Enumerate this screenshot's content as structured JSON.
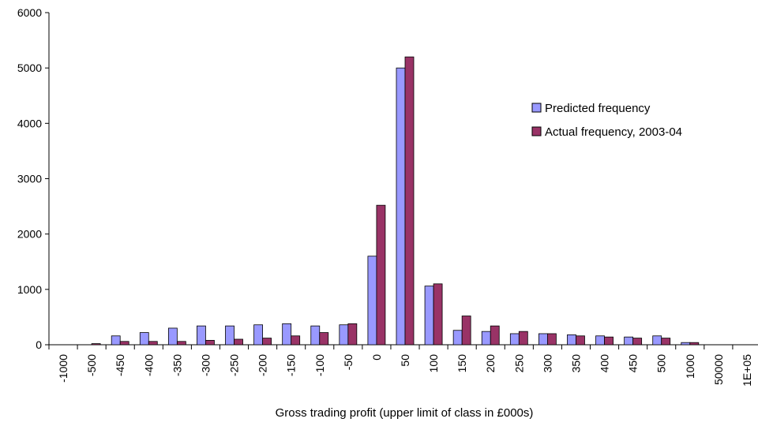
{
  "chart_data": {
    "type": "bar",
    "xlabel": "Gross trading profit (upper limit of class in £000s)",
    "ylabel": "",
    "ylim": [
      0,
      6000
    ],
    "yticks": [
      0,
      1000,
      2000,
      3000,
      4000,
      5000,
      6000
    ],
    "grid": false,
    "legend_position": "top-right",
    "categories": [
      "-1000",
      "-500",
      "-450",
      "-400",
      "-350",
      "-300",
      "-250",
      "-200",
      "-150",
      "-100",
      "-50",
      "0",
      "50",
      "100",
      "150",
      "200",
      "250",
      "300",
      "350",
      "400",
      "450",
      "500",
      "1000",
      "50000",
      "1E+05"
    ],
    "series": [
      {
        "name": "Predicted frequency",
        "color": "#9999ff",
        "values": [
          0,
          0,
          160,
          220,
          300,
          340,
          340,
          360,
          380,
          340,
          360,
          1600,
          5000,
          1060,
          260,
          240,
          200,
          200,
          180,
          160,
          140,
          160,
          40,
          0,
          0
        ]
      },
      {
        "name": "Actual frequency, 2003-04",
        "color": "#993366",
        "values": [
          0,
          20,
          60,
          60,
          60,
          80,
          100,
          120,
          160,
          220,
          380,
          2520,
          5200,
          1100,
          520,
          340,
          240,
          200,
          160,
          140,
          120,
          120,
          40,
          0,
          0
        ]
      }
    ]
  }
}
